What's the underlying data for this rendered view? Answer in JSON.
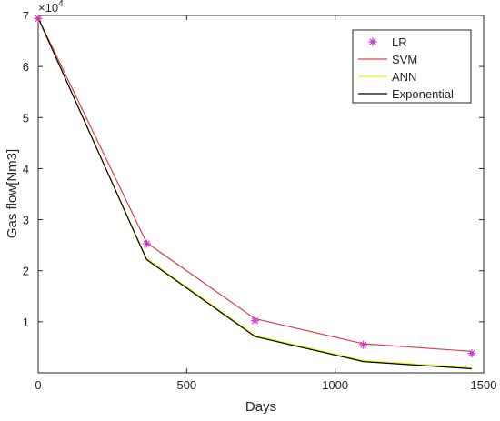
{
  "chart_data": {
    "type": "line",
    "title": "",
    "xlabel": "Days",
    "ylabel": "Gas flow[Nm3]",
    "y_exponent_label": "×10",
    "y_exponent_power": "4",
    "xlim": [
      0,
      1500
    ],
    "ylim": [
      0,
      70000
    ],
    "xticks": [
      0,
      500,
      1000,
      1500
    ],
    "yticks": [
      10000,
      20000,
      30000,
      40000,
      50000,
      60000,
      70000
    ],
    "ytick_labels": [
      "1",
      "2",
      "3",
      "4",
      "5",
      "6",
      "7"
    ],
    "grid": false,
    "legend_position": "top-right",
    "x": [
      0,
      365,
      730,
      1095,
      1460
    ],
    "series": [
      {
        "name": "LR",
        "style": "marker",
        "marker": "*",
        "color": "#cc33cc",
        "values": [
          69400,
          25300,
          10200,
          5500,
          3800
        ]
      },
      {
        "name": "SVM",
        "style": "line",
        "color": "#d9434f",
        "values": [
          69500,
          25500,
          10600,
          5700,
          4200
        ]
      },
      {
        "name": "ANN",
        "style": "line",
        "color": "#f0f000",
        "values": [
          69500,
          22400,
          7300,
          2400,
          1000
        ]
      },
      {
        "name": "Exponential",
        "style": "line",
        "color": "#000000",
        "values": [
          69500,
          22200,
          7100,
          2200,
          800
        ]
      }
    ]
  }
}
